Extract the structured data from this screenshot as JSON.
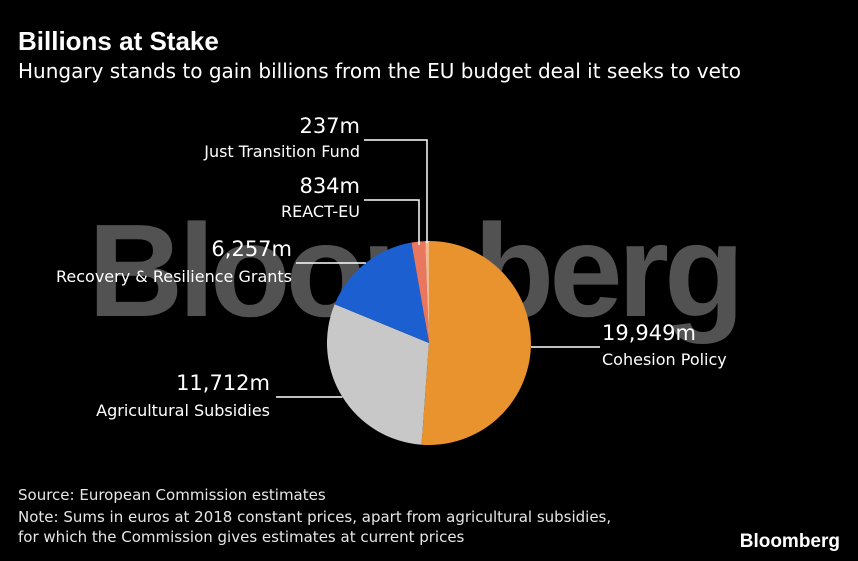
{
  "header": {
    "title": "Billions at Stake",
    "subtitle": "Hungary stands to gain billions from the EU budget deal it seeks to veto"
  },
  "watermark": "Bloomberg",
  "chart_data": {
    "type": "pie",
    "title": "Billions at Stake",
    "subtitle": "Hungary stands to gain billions from the EU budget deal it seeks to veto",
    "start": "12 o'clock",
    "direction": "clockwise",
    "slices": [
      {
        "label": "Cohesion Policy",
        "value": 19949,
        "value_label": "19,949m",
        "color": "#e8932e"
      },
      {
        "label": "Agricultural Subsidies",
        "value": 11712,
        "value_label": "11,712m",
        "color": "#c8c8c8"
      },
      {
        "label": "Recovery & Resilience Grants",
        "value": 6257,
        "value_label": "6,257m",
        "color": "#1b5fd0"
      },
      {
        "label": "REACT-EU",
        "value": 834,
        "value_label": "834m",
        "color": "#e8775e"
      },
      {
        "label": "Just Transition Fund",
        "value": 237,
        "value_label": "237m",
        "color": "#f1b98e"
      }
    ]
  },
  "footer": {
    "source": "Source: European Commission estimates",
    "note_line1": "Note: Sums in euros at 2018 constant prices, apart from agricultural subsidies,",
    "note_line2": "for which the Commission gives estimates at current prices",
    "brand": "Bloomberg"
  }
}
